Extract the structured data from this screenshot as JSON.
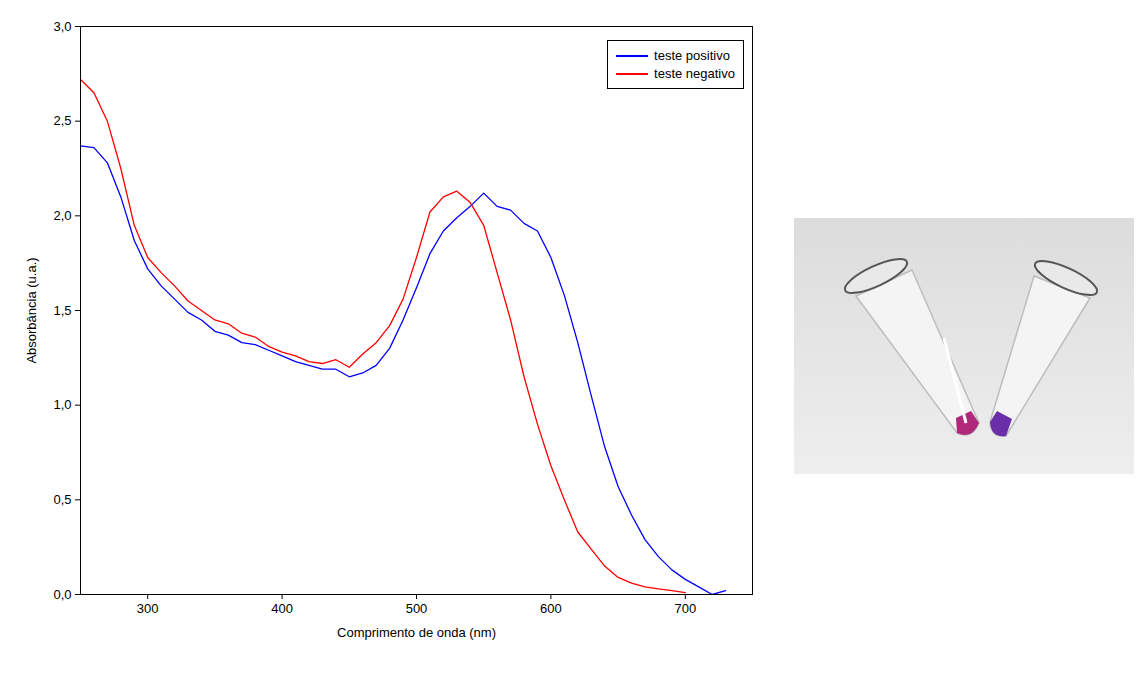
{
  "chart_data": {
    "type": "line",
    "xlabel": "Comprimento de onda (nm)",
    "ylabel": "Absorbância (u.a.)",
    "x": [
      250,
      260,
      270,
      280,
      290,
      300,
      310,
      320,
      330,
      340,
      350,
      360,
      370,
      380,
      390,
      400,
      410,
      420,
      430,
      440,
      450,
      460,
      470,
      480,
      490,
      500,
      510,
      520,
      530,
      540,
      550,
      560,
      570,
      580,
      590,
      600,
      610,
      620,
      630,
      640,
      650,
      660,
      670,
      680,
      690,
      700,
      710,
      720,
      730
    ],
    "series": [
      {
        "name": "teste positivo",
        "color": "#0000ff",
        "values": [
          2.37,
          2.36,
          2.28,
          2.1,
          1.87,
          1.72,
          1.63,
          1.56,
          1.49,
          1.45,
          1.39,
          1.37,
          1.33,
          1.32,
          1.29,
          1.26,
          1.23,
          1.21,
          1.19,
          1.19,
          1.15,
          1.17,
          1.21,
          1.3,
          1.45,
          1.62,
          1.8,
          1.92,
          1.99,
          2.05,
          2.12,
          2.05,
          2.03,
          1.96,
          1.92,
          1.78,
          1.58,
          1.33,
          1.05,
          0.78,
          0.57,
          0.42,
          0.29,
          0.2,
          0.13,
          0.08,
          0.04,
          0.0,
          0.02
        ]
      },
      {
        "name": "teste negativo",
        "color": "#ff0000",
        "values": [
          2.72,
          2.65,
          2.5,
          2.25,
          1.95,
          1.78,
          1.7,
          1.63,
          1.55,
          1.5,
          1.45,
          1.43,
          1.38,
          1.36,
          1.31,
          1.28,
          1.26,
          1.23,
          1.22,
          1.24,
          1.2,
          1.27,
          1.33,
          1.42,
          1.56,
          1.78,
          2.02,
          2.1,
          2.13,
          2.07,
          1.95,
          1.7,
          1.45,
          1.15,
          0.9,
          0.68,
          0.5,
          0.33,
          0.24,
          0.15,
          0.09,
          0.06,
          0.04,
          0.03,
          0.02,
          0.01,
          null,
          null,
          null
        ]
      }
    ],
    "xlim": [
      250,
      750
    ],
    "xticks": [
      300,
      400,
      500,
      600,
      700
    ],
    "ylim": [
      0,
      3.0
    ],
    "yticks": [
      {
        "value": 0,
        "label": "0,0"
      },
      {
        "value": 0.5,
        "label": "0,5"
      },
      {
        "value": 1.0,
        "label": "1,0"
      },
      {
        "value": 1.5,
        "label": "1,5"
      },
      {
        "value": 2.0,
        "label": "2,0"
      },
      {
        "value": 2.5,
        "label": "2,5"
      },
      {
        "value": 3.0,
        "label": "3,0"
      }
    ],
    "legend": "upper right",
    "grid": false
  }
}
